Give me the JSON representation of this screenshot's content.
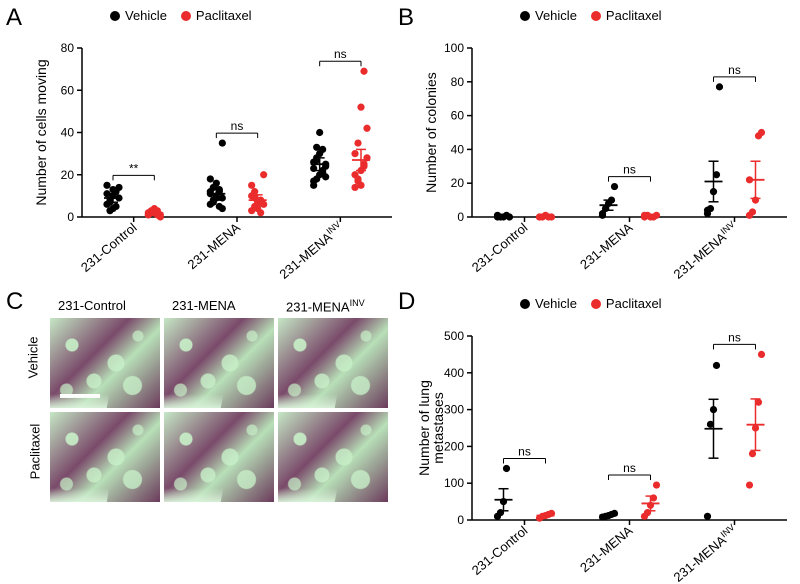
{
  "colors": {
    "vehicle": "#000000",
    "paclitaxel": "#ea2c2c",
    "axis": "#000000",
    "ns_text": "#000000"
  },
  "legend": {
    "vehicle": "Vehicle",
    "paclitaxel": "Paclitaxel"
  },
  "sig": {
    "ns": "ns",
    "starstar": "**"
  },
  "superscript_inv": "INV",
  "panelA": {
    "label": "A",
    "type": "scatter",
    "ylabel": "Number of cells moving",
    "ylim": [
      0,
      80
    ],
    "yticks": [
      0,
      20,
      40,
      60,
      80
    ],
    "groups": [
      "231-Control",
      "231-MENA",
      "231-MENAINV"
    ],
    "data": {
      "231-Control": {
        "Vehicle": [
          6,
          8,
          10,
          12,
          9,
          11,
          7,
          4,
          5,
          14,
          15,
          3,
          13
        ],
        "Paclitaxel": [
          1,
          2,
          2,
          3,
          0,
          1,
          2,
          4,
          1,
          1,
          2,
          3
        ]
      },
      "231-MENA": {
        "Vehicle": [
          6,
          8,
          10,
          12,
          9,
          11,
          14,
          16,
          13,
          35,
          18,
          7,
          9,
          5,
          4,
          12
        ],
        "Paclitaxel": [
          3,
          5,
          7,
          8,
          6,
          10,
          12,
          4,
          2,
          20,
          15,
          9
        ]
      },
      "231-MENAINV": {
        "Vehicle": [
          15,
          18,
          20,
          22,
          24,
          26,
          28,
          30,
          32,
          25,
          23,
          27,
          40,
          21,
          19,
          17,
          33
        ],
        "Paclitaxel": [
          14,
          18,
          22,
          25,
          28,
          30,
          35,
          52,
          69,
          42,
          20,
          17,
          15,
          24
        ]
      }
    },
    "sig_labels": [
      "**",
      "ns",
      "ns"
    ],
    "mean_se": {
      "231-Control": {
        "Vehicle": [
          9,
          2
        ],
        "Paclitaxel": [
          1.8,
          0.5
        ]
      },
      "231-MENA": {
        "Vehicle": [
          11,
          3
        ],
        "Paclitaxel": [
          8,
          2.5
        ]
      },
      "231-MENAINV": {
        "Vehicle": [
          25,
          3
        ],
        "Paclitaxel": [
          27,
          5
        ]
      }
    }
  },
  "panelB": {
    "label": "B",
    "type": "scatter",
    "ylabel": "Number of colonies",
    "ylim": [
      0,
      100
    ],
    "yticks": [
      0,
      20,
      40,
      60,
      80,
      100
    ],
    "groups": [
      "231-Control",
      "231-MENA",
      "231-MENAINV"
    ],
    "data": {
      "231-Control": {
        "Vehicle": [
          0,
          0,
          0,
          1,
          0,
          1
        ],
        "Paclitaxel": [
          0,
          0,
          1,
          0,
          0,
          0
        ]
      },
      "231-MENA": {
        "Vehicle": [
          2,
          5,
          8,
          10,
          18,
          1
        ],
        "Paclitaxel": [
          0,
          1,
          0,
          0,
          1,
          1
        ]
      },
      "231-MENAINV": {
        "Vehicle": [
          2,
          5,
          15,
          25,
          77,
          4
        ],
        "Paclitaxel": [
          1,
          3,
          10,
          48,
          50,
          22
        ]
      }
    },
    "sig_labels": [
      "",
      "ns",
      "ns"
    ],
    "mean_se": {
      "231-Control": {
        "Vehicle": [
          0.3,
          0.2
        ],
        "Paclitaxel": [
          0.2,
          0.15
        ]
      },
      "231-MENA": {
        "Vehicle": [
          7,
          3
        ],
        "Paclitaxel": [
          0.5,
          0.3
        ]
      },
      "231-MENAINV": {
        "Vehicle": [
          21,
          12
        ],
        "Paclitaxel": [
          22,
          11
        ]
      }
    }
  },
  "panelC": {
    "label": "C",
    "cols": [
      "231-Control",
      "231-MENA",
      "231-MENAINV"
    ],
    "rows": [
      "Vehicle",
      "Paclitaxel"
    ]
  },
  "panelD": {
    "label": "D",
    "type": "scatter",
    "ylabel": "Number of lung\nmetastases",
    "ylim": [
      0,
      500
    ],
    "yticks": [
      0,
      100,
      200,
      300,
      400,
      500
    ],
    "groups": [
      "231-Control",
      "231-MENA",
      "231-MENAINV"
    ],
    "data": {
      "231-Control": {
        "Vehicle": [
          10,
          20,
          50,
          140
        ],
        "Paclitaxel": [
          5,
          10,
          12,
          15,
          18
        ]
      },
      "231-MENA": {
        "Vehicle": [
          8,
          10,
          12,
          15,
          18
        ],
        "Paclitaxel": [
          10,
          20,
          40,
          60,
          95
        ]
      },
      "231-MENAINV": {
        "Vehicle": [
          10,
          260,
          300,
          420
        ],
        "Paclitaxel": [
          95,
          180,
          250,
          320,
          450
        ]
      }
    },
    "sig_labels": [
      "ns",
      "ns",
      "ns"
    ],
    "mean_se": {
      "231-Control": {
        "Vehicle": [
          55,
          30
        ],
        "Paclitaxel": [
          12,
          3
        ]
      },
      "231-MENA": {
        "Vehicle": [
          13,
          2
        ],
        "Paclitaxel": [
          45,
          20
        ]
      },
      "231-MENAINV": {
        "Vehicle": [
          248,
          80
        ],
        "Paclitaxel": [
          259,
          70
        ]
      }
    }
  }
}
